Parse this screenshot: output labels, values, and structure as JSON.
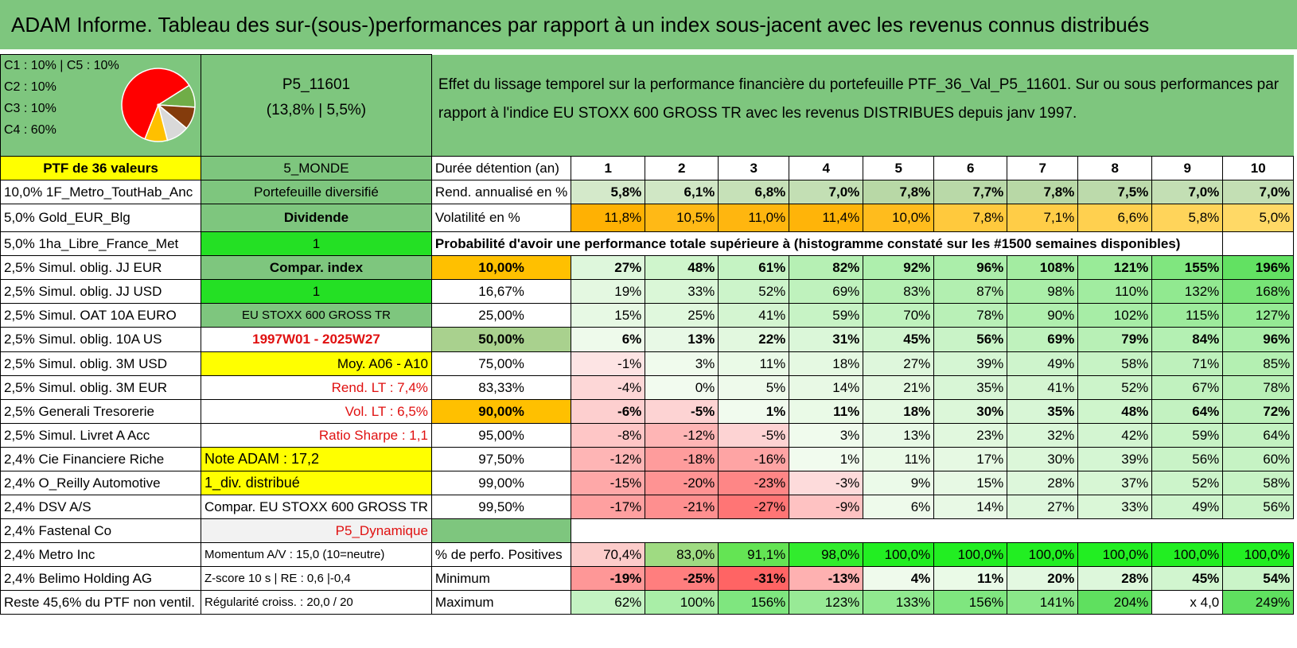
{
  "title": "ADAM Informe. Tableau des sur-(sous-)performances par rapport à un index sous-jacent avec les revenus connus distribués",
  "legend": {
    "l1": "C1 : 10% | C5 : 10%",
    "l2": "C2 : 10%",
    "l3": "C3 : 10%",
    "l4": "C4 : 60%"
  },
  "pie_colors": [
    "#ff0000",
    "#70ad47",
    "#843c0c",
    "#d9d9d9",
    "#ffc000"
  ],
  "portfolio": {
    "code": "P5_11601",
    "perf": "(13,8% | 5,5%)"
  },
  "effect_text": "Effet du lissage temporel sur la performance financière du portefeuille PTF_36_Val_P5_11601. Sur ou sous performances par rapport à l'indice EU STOXX 600 GROSS TR avec les revenus DISTRIBUES depuis janv 1997.",
  "col_a": {
    "header": "PTF de 36 valeurs",
    "rows": [
      "10,0% 1F_Metro_ToutHab_Anc",
      "5,0% Gold_EUR_Blg",
      "5,0% 1ha_Libre_France_Met",
      "2,5% Simul. oblig. JJ EUR",
      "2,5% Simul. oblig. JJ USD",
      "2,5% Simul. OAT 10A EURO",
      "2,5% Simul. oblig. 10A US",
      "2,5% Simul. oblig. 3M USD",
      "2,5% Simul. oblig. 3M EUR",
      "2,5% Generali Tresorerie",
      "2,5% Simul. Livret A Acc",
      "2,4% Cie Financiere Riche",
      "2,4% O_Reilly Automotive",
      "2,4% DSV A/S",
      "2,4% Fastenal Co",
      "2,4% Metro Inc",
      "2,4% Belimo Holding AG",
      "Reste 45,6% du PTF non ventil."
    ]
  },
  "col_b": {
    "header": "5_MONDE",
    "rows": [
      "Portefeuille diversifié",
      "Dividende",
      "1",
      "Compar. index",
      "1",
      "EU STOXX 600 GROSS TR",
      "1997W01 - 2025W27",
      "Moy. A06 - A10",
      "Rend. LT : 7,4%",
      "Vol. LT : 6,5%",
      "Ratio Sharpe : 1,1",
      "Note ADAM : 17,2",
      "1_div. distribué",
      "Compar. EU STOXX 600 GROSS TR",
      "P5_Dynamique",
      "Momentum A/V : 15,0 (10=neutre)",
      "Z-score 10 s | RE : 0,6 |-0,4",
      "Régularité croiss. : 20,0 / 20"
    ]
  },
  "years_label": "Durée détention (an)",
  "years": [
    "1",
    "2",
    "3",
    "4",
    "5",
    "6",
    "7",
    "8",
    "9",
    "10"
  ],
  "rend": {
    "label": "Rend. annualisé en %",
    "values": [
      "5,8%",
      "6,1%",
      "6,8%",
      "7,0%",
      "7,8%",
      "7,7%",
      "7,8%",
      "7,5%",
      "7,0%",
      "7,0%"
    ]
  },
  "vol": {
    "label": "Volatilité en %",
    "values": [
      "11,8%",
      "10,5%",
      "11,0%",
      "11,4%",
      "10,0%",
      "7,8%",
      "7,1%",
      "6,6%",
      "5,8%",
      "5,0%"
    ]
  },
  "prob_title": "Probabilité d'avoir une performance totale supérieure à (histogramme constaté sur les #1500 semaines disponibles)",
  "prob_rows": [
    {
      "p": "10,00%",
      "v": [
        "27%",
        "48%",
        "61%",
        "82%",
        "92%",
        "96%",
        "108%",
        "121%",
        "155%",
        "196%"
      ]
    },
    {
      "p": "16,67%",
      "v": [
        "19%",
        "33%",
        "52%",
        "69%",
        "83%",
        "87%",
        "98%",
        "110%",
        "132%",
        "168%"
      ]
    },
    {
      "p": "25,00%",
      "v": [
        "15%",
        "25%",
        "41%",
        "59%",
        "70%",
        "78%",
        "90%",
        "102%",
        "115%",
        "127%"
      ]
    },
    {
      "p": "50,00%",
      "v": [
        "6%",
        "13%",
        "22%",
        "31%",
        "45%",
        "56%",
        "69%",
        "79%",
        "84%",
        "96%"
      ]
    },
    {
      "p": "75,00%",
      "v": [
        "-1%",
        "3%",
        "11%",
        "18%",
        "27%",
        "39%",
        "49%",
        "58%",
        "71%",
        "85%"
      ]
    },
    {
      "p": "83,33%",
      "v": [
        "-4%",
        "0%",
        "5%",
        "14%",
        "21%",
        "35%",
        "41%",
        "52%",
        "67%",
        "78%"
      ]
    },
    {
      "p": "90,00%",
      "v": [
        "-6%",
        "-5%",
        "1%",
        "11%",
        "18%",
        "30%",
        "35%",
        "48%",
        "64%",
        "72%"
      ]
    },
    {
      "p": "95,00%",
      "v": [
        "-8%",
        "-12%",
        "-5%",
        "3%",
        "13%",
        "23%",
        "32%",
        "42%",
        "59%",
        "64%"
      ]
    },
    {
      "p": "97,50%",
      "v": [
        "-12%",
        "-18%",
        "-16%",
        "1%",
        "11%",
        "17%",
        "30%",
        "39%",
        "56%",
        "60%"
      ]
    },
    {
      "p": "99,00%",
      "v": [
        "-15%",
        "-20%",
        "-23%",
        "-3%",
        "9%",
        "15%",
        "28%",
        "37%",
        "52%",
        "58%"
      ]
    },
    {
      "p": "99,50%",
      "v": [
        "-17%",
        "-21%",
        "-27%",
        "-9%",
        "6%",
        "14%",
        "27%",
        "33%",
        "49%",
        "56%"
      ]
    }
  ],
  "pos": {
    "label": "% de perfo. Positives",
    "values": [
      "70,4%",
      "83,0%",
      "91,1%",
      "98,0%",
      "100,0%",
      "100,0%",
      "100,0%",
      "100,0%",
      "100,0%",
      "100,0%"
    ]
  },
  "min": {
    "label": "Minimum",
    "values": [
      "-19%",
      "-25%",
      "-31%",
      "-13%",
      "4%",
      "11%",
      "20%",
      "28%",
      "45%",
      "54%"
    ]
  },
  "max": {
    "label": "Maximum",
    "values": [
      "62%",
      "100%",
      "156%",
      "123%",
      "133%",
      "156%",
      "141%",
      "204%",
      "x 4,0",
      "249%"
    ]
  }
}
